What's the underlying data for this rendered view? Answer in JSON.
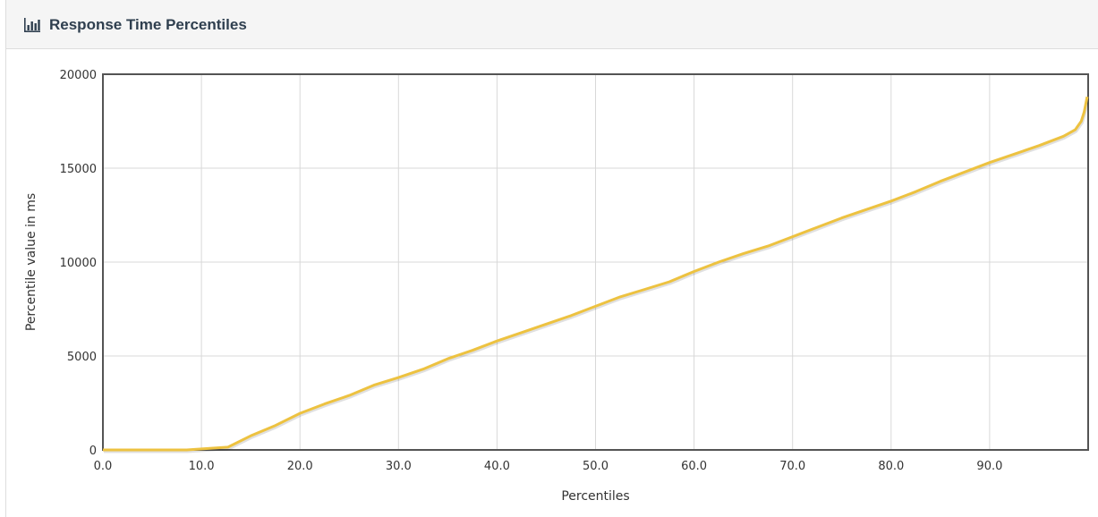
{
  "panel": {
    "title": "Response Time Percentiles",
    "icon": "bar-chart-icon"
  },
  "colors": {
    "series": "#edc240",
    "grid": "#d8d8d8",
    "axis": "#545454",
    "heading_text": "#2f3f4f"
  },
  "chart_data": {
    "type": "line",
    "title": "Response Time Percentiles",
    "xlabel": "Percentiles",
    "ylabel": "Percentile value in ms",
    "xlim": [
      0,
      100
    ],
    "ylim": [
      0,
      20000
    ],
    "grid": true,
    "x_ticks": [
      "0.0",
      "10.0",
      "20.0",
      "30.0",
      "40.0",
      "50.0",
      "60.0",
      "70.0",
      "80.0",
      "90.0"
    ],
    "y_ticks": [
      "0",
      "5000",
      "10000",
      "15000",
      "20000"
    ],
    "series": [
      {
        "x": [
          0,
          5,
          8.5,
          10,
          12.7,
          15,
          17.5,
          20,
          22.5,
          25,
          27.5,
          30,
          32.5,
          35,
          37.5,
          40,
          42.5,
          45,
          47.5,
          50,
          52.5,
          55,
          57.5,
          60,
          62.5,
          65,
          67.5,
          70,
          72.5,
          75,
          77.5,
          80,
          82.5,
          85,
          87.5,
          90,
          92.5,
          95,
          97.5,
          98.7,
          99.3,
          99.6,
          99.9
        ],
        "y": [
          0,
          0,
          0,
          50,
          150,
          750,
          1300,
          1950,
          2450,
          2900,
          3450,
          3850,
          4300,
          4850,
          5300,
          5800,
          6250,
          6700,
          7150,
          7650,
          8150,
          8550,
          8950,
          9500,
          10000,
          10450,
          10850,
          11350,
          11850,
          12350,
          12800,
          13250,
          13750,
          14300,
          14800,
          15300,
          15750,
          16200,
          16700,
          17050,
          17500,
          18000,
          18800
        ]
      }
    ]
  }
}
